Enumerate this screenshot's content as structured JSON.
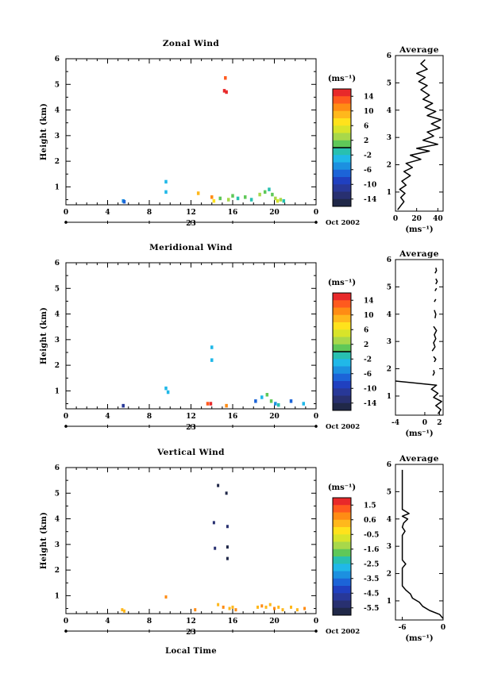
{
  "figure": {
    "date_label": "Oct 2002",
    "day_label": "23",
    "bottom_xlabel": "Local Time",
    "avg_xlabel": "(ms⁻¹)",
    "colorbar_unit": "(ms⁻¹)"
  },
  "chart_data": [
    {
      "type": "heatmap",
      "title": "Zonal Wind",
      "ylabel": "Height (km)",
      "xlim": [
        0,
        24
      ],
      "ylim": [
        0.3,
        6
      ],
      "xticks": [
        "0",
        "4",
        "8",
        "12",
        "16",
        "20",
        "0"
      ],
      "yticks": [
        "1",
        "2",
        "3",
        "4",
        "5",
        "6"
      ],
      "colorbar": {
        "unit": "(ms⁻¹)",
        "min": -16,
        "max": 16,
        "ticks": [
          "14",
          "10",
          "6",
          "2",
          "-2",
          "-6",
          "-10",
          "-14"
        ],
        "black_line_at": 0
      },
      "points": [
        {
          "t": 5.5,
          "h": 0.45,
          "v": -4
        },
        {
          "t": 5.6,
          "h": 0.42,
          "v": -6
        },
        {
          "t": 9.6,
          "h": 1.2,
          "v": -3
        },
        {
          "t": 9.6,
          "h": 0.8,
          "v": -2
        },
        {
          "t": 12.7,
          "h": 0.75,
          "v": 10
        },
        {
          "t": 14.0,
          "h": 0.6,
          "v": 12
        },
        {
          "t": 14.2,
          "h": 0.45,
          "v": 8
        },
        {
          "t": 14.8,
          "h": 0.55,
          "v": 2
        },
        {
          "t": 15.3,
          "h": 5.25,
          "v": 14
        },
        {
          "t": 15.2,
          "h": 4.75,
          "v": 15
        },
        {
          "t": 15.4,
          "h": 4.7,
          "v": 15
        },
        {
          "t": 15.6,
          "h": 0.5,
          "v": 3
        },
        {
          "t": 16.0,
          "h": 0.65,
          "v": 2
        },
        {
          "t": 16.5,
          "h": 0.55,
          "v": -1
        },
        {
          "t": 17.2,
          "h": 0.6,
          "v": 1
        },
        {
          "t": 17.8,
          "h": 0.5,
          "v": 0
        },
        {
          "t": 18.6,
          "h": 0.7,
          "v": 4
        },
        {
          "t": 19.1,
          "h": 0.8,
          "v": 1
        },
        {
          "t": 19.5,
          "h": 0.9,
          "v": -1
        },
        {
          "t": 19.8,
          "h": 0.7,
          "v": 2
        },
        {
          "t": 20.1,
          "h": 0.55,
          "v": 4
        },
        {
          "t": 20.3,
          "h": 0.45,
          "v": 6
        },
        {
          "t": 20.6,
          "h": 0.5,
          "v": 3
        },
        {
          "t": 20.9,
          "h": 0.45,
          "v": -1
        }
      ],
      "average": {
        "title": "Average",
        "xlabel": "(ms⁻¹)",
        "xlim": [
          0,
          45
        ],
        "xticks": [
          "0",
          "20",
          "40"
        ],
        "profile": [
          [
            2,
            0.35
          ],
          [
            5,
            0.5
          ],
          [
            8,
            0.65
          ],
          [
            5,
            0.8
          ],
          [
            9,
            0.95
          ],
          [
            4,
            1.1
          ],
          [
            10,
            1.25
          ],
          [
            6,
            1.4
          ],
          [
            14,
            1.6
          ],
          [
            8,
            1.75
          ],
          [
            16,
            1.9
          ],
          [
            10,
            2.05
          ],
          [
            24,
            2.2
          ],
          [
            14,
            2.35
          ],
          [
            32,
            2.5
          ],
          [
            20,
            2.6
          ],
          [
            40,
            2.75
          ],
          [
            26,
            2.9
          ],
          [
            36,
            3.05
          ],
          [
            30,
            3.2
          ],
          [
            42,
            3.35
          ],
          [
            34,
            3.5
          ],
          [
            43,
            3.65
          ],
          [
            30,
            3.8
          ],
          [
            38,
            3.95
          ],
          [
            28,
            4.1
          ],
          [
            35,
            4.25
          ],
          [
            26,
            4.4
          ],
          [
            32,
            4.55
          ],
          [
            24,
            4.75
          ],
          [
            30,
            4.9
          ],
          [
            22,
            5.05
          ],
          [
            28,
            5.2
          ],
          [
            20,
            5.35
          ],
          [
            30,
            5.5
          ],
          [
            24,
            5.7
          ],
          [
            28,
            5.85
          ]
        ]
      }
    },
    {
      "type": "heatmap",
      "title": "Meridional Wind",
      "ylabel": "Height (km)",
      "xlim": [
        0,
        24
      ],
      "ylim": [
        0.3,
        6
      ],
      "xticks": [
        "0",
        "4",
        "8",
        "12",
        "16",
        "20",
        "0"
      ],
      "yticks": [
        "1",
        "2",
        "3",
        "4",
        "5",
        "6"
      ],
      "colorbar": {
        "unit": "(ms⁻¹)",
        "min": -16,
        "max": 16,
        "ticks": [
          "14",
          "10",
          "6",
          "2",
          "-2",
          "-6",
          "-10",
          "-14"
        ],
        "black_line_at": 0
      },
      "points": [
        {
          "t": 5.5,
          "h": 0.42,
          "v": -10
        },
        {
          "t": 9.6,
          "h": 1.1,
          "v": -3
        },
        {
          "t": 9.8,
          "h": 0.95,
          "v": -2
        },
        {
          "t": 13.6,
          "h": 0.5,
          "v": 14
        },
        {
          "t": 13.9,
          "h": 0.5,
          "v": 15
        },
        {
          "t": 14.0,
          "h": 2.7,
          "v": -2
        },
        {
          "t": 14.0,
          "h": 2.2,
          "v": -3
        },
        {
          "t": 15.4,
          "h": 0.42,
          "v": 12
        },
        {
          "t": 18.2,
          "h": 0.6,
          "v": -6
        },
        {
          "t": 18.8,
          "h": 0.75,
          "v": -2
        },
        {
          "t": 19.3,
          "h": 0.85,
          "v": 1
        },
        {
          "t": 19.7,
          "h": 0.6,
          "v": 2
        },
        {
          "t": 20.1,
          "h": 0.5,
          "v": -4
        },
        {
          "t": 20.4,
          "h": 0.45,
          "v": 0
        },
        {
          "t": 21.6,
          "h": 0.6,
          "v": -6
        },
        {
          "t": 22.8,
          "h": 0.5,
          "v": -2
        }
      ],
      "average": {
        "title": "Average",
        "xlabel": "(ms⁻¹)",
        "xlim": [
          -4,
          2.5
        ],
        "xticks": [
          "-4",
          "0",
          "2"
        ],
        "profile": [
          [
            1.8,
            0.35
          ],
          [
            2.2,
            0.5
          ],
          [
            1.5,
            0.65
          ],
          [
            2.3,
            0.8
          ],
          [
            1.2,
            0.95
          ],
          [
            1.8,
            1.1
          ],
          [
            0.9,
            1.25
          ],
          [
            1.6,
            1.4
          ],
          [
            -4,
            1.55
          ]
        ],
        "fragments": [
          [
            [
              1.1,
              1.75
            ],
            [
              1.3,
              1.85
            ],
            [
              1.2,
              1.95
            ]
          ],
          [
            [
              1.3,
              2.25
            ],
            [
              1.5,
              2.35
            ],
            [
              1.2,
              2.45
            ]
          ],
          [
            [
              1.0,
              2.65
            ],
            [
              1.4,
              2.8
            ],
            [
              1.2,
              2.95
            ],
            [
              1.5,
              3.1
            ],
            [
              1.3,
              3.25
            ],
            [
              1.6,
              3.4
            ],
            [
              1.2,
              3.55
            ]
          ],
          [
            [
              1.4,
              3.85
            ],
            [
              1.5,
              4.0
            ],
            [
              1.3,
              4.15
            ]
          ],
          [
            [
              1.3,
              4.45
            ],
            [
              1.5,
              4.55
            ]
          ],
          [
            [
              1.4,
              4.85
            ],
            [
              1.6,
              4.95
            ]
          ],
          [
            [
              1.5,
              5.1
            ],
            [
              1.7,
              5.2
            ],
            [
              1.5,
              5.3
            ]
          ],
          [
            [
              1.4,
              5.5
            ],
            [
              1.6,
              5.6
            ],
            [
              1.5,
              5.7
            ]
          ]
        ]
      }
    },
    {
      "type": "heatmap",
      "title": "Vertical Wind",
      "ylabel": "Height (km)",
      "xlim": [
        0,
        24
      ],
      "ylim": [
        0.3,
        6
      ],
      "xticks": [
        "0",
        "4",
        "8",
        "12",
        "16",
        "20",
        "0"
      ],
      "yticks": [
        "1",
        "2",
        "3",
        "4",
        "5",
        "6"
      ],
      "colorbar": {
        "unit": "(ms⁻¹)",
        "min": -6,
        "max": 2,
        "ticks": [
          "1.5",
          "0.6",
          "-0.5",
          "-1.6",
          "-2.5",
          "-3.5",
          "-4.5",
          "-5.5"
        ],
        "black_line_at": null
      },
      "points": [
        {
          "t": 5.4,
          "h": 0.45,
          "v": 0.3
        },
        {
          "t": 5.6,
          "h": 0.4,
          "v": 0.5
        },
        {
          "t": 9.6,
          "h": 0.95,
          "v": 0.6
        },
        {
          "t": 12.4,
          "h": 0.45,
          "v": 1.0
        },
        {
          "t": 14.2,
          "h": 3.85,
          "v": -5.4
        },
        {
          "t": 14.3,
          "h": 2.85,
          "v": -5.2
        },
        {
          "t": 14.6,
          "h": 5.3,
          "v": -5.8
        },
        {
          "t": 15.4,
          "h": 5.0,
          "v": -5.6
        },
        {
          "t": 15.5,
          "h": 3.7,
          "v": -5.3
        },
        {
          "t": 15.5,
          "h": 2.9,
          "v": -5.5
        },
        {
          "t": 15.5,
          "h": 2.45,
          "v": -5.5
        },
        {
          "t": 14.6,
          "h": 0.65,
          "v": 0.4
        },
        {
          "t": 15.1,
          "h": 0.55,
          "v": 0.6
        },
        {
          "t": 15.7,
          "h": 0.5,
          "v": 0.5
        },
        {
          "t": 16.0,
          "h": 0.55,
          "v": 0.3
        },
        {
          "t": 16.3,
          "h": 0.45,
          "v": 0.7
        },
        {
          "t": 18.4,
          "h": 0.55,
          "v": 0.4
        },
        {
          "t": 18.8,
          "h": 0.6,
          "v": 0.6
        },
        {
          "t": 19.2,
          "h": 0.55,
          "v": 0.3
        },
        {
          "t": 19.6,
          "h": 0.65,
          "v": 0.5
        },
        {
          "t": 20.0,
          "h": 0.5,
          "v": 0.7
        },
        {
          "t": 20.4,
          "h": 0.55,
          "v": 0.4
        },
        {
          "t": 20.8,
          "h": 0.45,
          "v": 0.2
        },
        {
          "t": 21.6,
          "h": 0.55,
          "v": 0.5
        },
        {
          "t": 22.2,
          "h": 0.45,
          "v": 0.3
        },
        {
          "t": 22.9,
          "h": 0.5,
          "v": 0.6
        }
      ],
      "average": {
        "title": "Average",
        "xlabel": "(ms⁻¹)",
        "xlim": [
          -7,
          0
        ],
        "xticks": [
          "-6",
          "0"
        ],
        "profile": [
          [
            0,
            0.35
          ],
          [
            -0.5,
            0.5
          ],
          [
            -2,
            0.65
          ],
          [
            -3,
            0.8
          ],
          [
            -3.5,
            0.95
          ],
          [
            -4.5,
            1.1
          ],
          [
            -4.8,
            1.25
          ],
          [
            -5.5,
            1.4
          ],
          [
            -6,
            1.55
          ],
          [
            -6,
            1.8
          ],
          [
            -6,
            2.0
          ],
          [
            -6,
            2.2
          ],
          [
            -5.5,
            2.35
          ],
          [
            -6,
            2.5
          ],
          [
            -6,
            2.8
          ],
          [
            -6,
            3.2
          ],
          [
            -6,
            3.4
          ],
          [
            -5.6,
            3.55
          ],
          [
            -6,
            3.7
          ],
          [
            -5.8,
            3.85
          ],
          [
            -5.2,
            4.0
          ],
          [
            -6,
            4.1
          ],
          [
            -5.0,
            4.2
          ],
          [
            -6,
            4.35
          ],
          [
            -6,
            4.6
          ],
          [
            -6,
            5.0
          ],
          [
            -6,
            5.4
          ],
          [
            -6,
            5.8
          ]
        ]
      }
    }
  ]
}
